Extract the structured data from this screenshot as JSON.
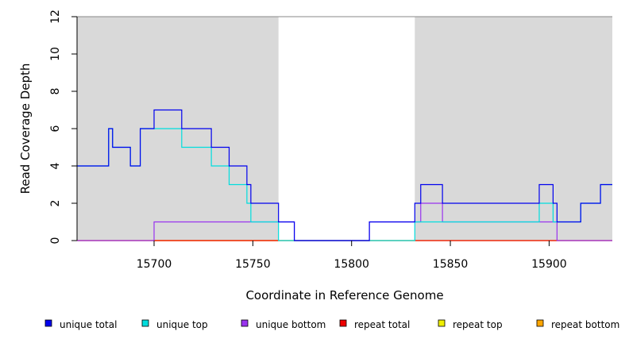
{
  "chart_data": {
    "type": "line",
    "title": "",
    "xlabel": "Coordinate in Reference Genome",
    "ylabel": "Read Coverage Depth",
    "xlim": [
      15661,
      15932
    ],
    "ylim": [
      0,
      12
    ],
    "x_ticks": [
      15700,
      15750,
      15800,
      15850,
      15900
    ],
    "y_ticks": [
      0,
      2,
      4,
      6,
      8,
      10,
      12
    ],
    "shaded_regions": [
      {
        "x_start": 15661,
        "x_end": 15763
      },
      {
        "x_start": 15832,
        "x_end": 15932
      }
    ],
    "shade_color": "#d9d9d9",
    "line_style": "step",
    "series": [
      {
        "name": "unique total",
        "color": "#0000ee",
        "points": [
          [
            15661,
            4
          ],
          [
            15677,
            6
          ],
          [
            15679,
            5
          ],
          [
            15688,
            4
          ],
          [
            15693,
            6
          ],
          [
            15700,
            7
          ],
          [
            15714,
            6
          ],
          [
            15729,
            5
          ],
          [
            15738,
            4
          ],
          [
            15747,
            3
          ],
          [
            15749,
            2
          ],
          [
            15763,
            1
          ],
          [
            15771,
            0
          ],
          [
            15809,
            1
          ],
          [
            15832,
            2
          ],
          [
            15835,
            3
          ],
          [
            15846,
            2
          ],
          [
            15895,
            3
          ],
          [
            15902,
            2
          ],
          [
            15904,
            1
          ],
          [
            15916,
            2
          ],
          [
            15926,
            3
          ],
          [
            15932,
            3
          ]
        ]
      },
      {
        "name": "unique top",
        "color": "#00dddd",
        "points": [
          [
            15661,
            4
          ],
          [
            15677,
            6
          ],
          [
            15679,
            5
          ],
          [
            15688,
            4
          ],
          [
            15693,
            6
          ],
          [
            15714,
            5
          ],
          [
            15729,
            4
          ],
          [
            15738,
            3
          ],
          [
            15747,
            2
          ],
          [
            15749,
            1
          ],
          [
            15763,
            0
          ],
          [
            15832,
            1
          ],
          [
            15895,
            2
          ],
          [
            15902,
            1
          ],
          [
            15904,
            1
          ],
          [
            15916,
            2
          ],
          [
            15926,
            3
          ],
          [
            15932,
            3
          ]
        ]
      },
      {
        "name": "unique bottom",
        "color": "#9933ee",
        "points": [
          [
            15661,
            0
          ],
          [
            15700,
            1
          ],
          [
            15771,
            0
          ],
          [
            15809,
            1
          ],
          [
            15835,
            2
          ],
          [
            15846,
            1
          ],
          [
            15904,
            0
          ],
          [
            15932,
            0
          ]
        ]
      },
      {
        "name": "repeat total",
        "color": "#ee0000",
        "points": [
          [
            15661,
            0
          ],
          [
            15932,
            0
          ]
        ]
      },
      {
        "name": "repeat top",
        "color": "#eeee00",
        "points": [
          [
            15661,
            0
          ],
          [
            15932,
            0
          ]
        ]
      },
      {
        "name": "repeat bottom",
        "color": "#ffa500",
        "points": [
          [
            15700,
            0
          ],
          [
            15763,
            0
          ]
        ]
      }
    ],
    "legend_position": "bottom",
    "grid": false
  }
}
